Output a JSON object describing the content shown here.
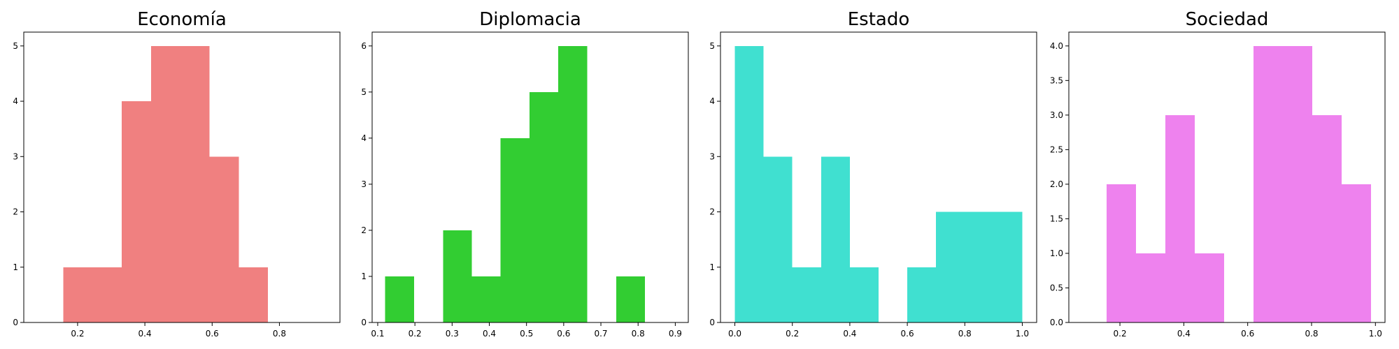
{
  "chart_data": [
    {
      "type": "bar",
      "title": "Economía",
      "color": "#F08080",
      "xlim": [
        0.04,
        0.98
      ],
      "ylim": [
        0,
        5.25
      ],
      "xticks": [
        0.2,
        0.4,
        0.6,
        0.8
      ],
      "xtick_labels": [
        "0.2",
        "0.4",
        "0.6",
        "0.8"
      ],
      "yticks": [
        0,
        1,
        2,
        3,
        4,
        5
      ],
      "ytick_labels": [
        "0",
        "1",
        "2",
        "3",
        "4",
        "5"
      ],
      "bins": [
        {
          "x0": 0.157,
          "x1": 0.244,
          "count": 1
        },
        {
          "x0": 0.244,
          "x1": 0.331,
          "count": 1
        },
        {
          "x0": 0.331,
          "x1": 0.418,
          "count": 4
        },
        {
          "x0": 0.418,
          "x1": 0.505,
          "count": 5
        },
        {
          "x0": 0.505,
          "x1": 0.592,
          "count": 5
        },
        {
          "x0": 0.592,
          "x1": 0.679,
          "count": 3
        },
        {
          "x0": 0.679,
          "x1": 0.766,
          "count": 1
        }
      ]
    },
    {
      "type": "bar",
      "title": "Diplomacia",
      "color": "#32CD32",
      "xlim": [
        0.085,
        0.935
      ],
      "ylim": [
        0,
        6.3
      ],
      "xticks": [
        0.1,
        0.2,
        0.3,
        0.4,
        0.5,
        0.6,
        0.7,
        0.8,
        0.9
      ],
      "xtick_labels": [
        "0.1",
        "0.2",
        "0.3",
        "0.4",
        "0.5",
        "0.6",
        "0.7",
        "0.8",
        "0.9"
      ],
      "yticks": [
        0,
        1,
        2,
        3,
        4,
        5,
        6
      ],
      "ytick_labels": [
        "0",
        "1",
        "2",
        "3",
        "4",
        "5",
        "6"
      ],
      "bins": [
        {
          "x0": 0.12,
          "x1": 0.198,
          "count": 1
        },
        {
          "x0": 0.198,
          "x1": 0.276,
          "count": 0
        },
        {
          "x0": 0.276,
          "x1": 0.353,
          "count": 2
        },
        {
          "x0": 0.353,
          "x1": 0.43,
          "count": 1
        },
        {
          "x0": 0.43,
          "x1": 0.508,
          "count": 4
        },
        {
          "x0": 0.508,
          "x1": 0.585,
          "count": 5
        },
        {
          "x0": 0.585,
          "x1": 0.663,
          "count": 6
        },
        {
          "x0": 0.663,
          "x1": 0.741,
          "count": 0
        },
        {
          "x0": 0.741,
          "x1": 0.818,
          "count": 1
        }
      ]
    },
    {
      "type": "bar",
      "title": "Estado",
      "color": "#40E0D0",
      "xlim": [
        -0.05,
        1.05
      ],
      "ylim": [
        0,
        5.25
      ],
      "xticks": [
        0.0,
        0.2,
        0.4,
        0.6,
        0.8,
        1.0
      ],
      "xtick_labels": [
        "0.0",
        "0.2",
        "0.4",
        "0.6",
        "0.8",
        "1.0"
      ],
      "yticks": [
        0,
        1,
        2,
        3,
        4,
        5
      ],
      "ytick_labels": [
        "0",
        "1",
        "2",
        "3",
        "4",
        "5"
      ],
      "bins": [
        {
          "x0": 0.0,
          "x1": 0.1,
          "count": 5
        },
        {
          "x0": 0.1,
          "x1": 0.2,
          "count": 3
        },
        {
          "x0": 0.2,
          "x1": 0.3,
          "count": 1
        },
        {
          "x0": 0.3,
          "x1": 0.4,
          "count": 3
        },
        {
          "x0": 0.4,
          "x1": 0.5,
          "count": 1
        },
        {
          "x0": 0.5,
          "x1": 0.6,
          "count": 0
        },
        {
          "x0": 0.6,
          "x1": 0.7,
          "count": 1
        },
        {
          "x0": 0.7,
          "x1": 0.8,
          "count": 2
        },
        {
          "x0": 0.8,
          "x1": 0.9,
          "count": 2
        },
        {
          "x0": 0.9,
          "x1": 1.0,
          "count": 2
        }
      ]
    },
    {
      "type": "bar",
      "title": "Sociedad",
      "color": "#EE82EE",
      "xlim": [
        0.04,
        1.03
      ],
      "ylim": [
        0,
        4.2
      ],
      "xticks": [
        0.2,
        0.4,
        0.6,
        0.8,
        1.0
      ],
      "xtick_labels": [
        "0.2",
        "0.4",
        "0.6",
        "0.8",
        "1.0"
      ],
      "yticks": [
        0.0,
        0.5,
        1.0,
        1.5,
        2.0,
        2.5,
        3.0,
        3.5,
        4.0
      ],
      "ytick_labels": [
        "0.0",
        "0.5",
        "1.0",
        "1.5",
        "2.0",
        "2.5",
        "3.0",
        "3.5",
        "4.0"
      ],
      "bins": [
        {
          "x0": 0.158,
          "x1": 0.25,
          "count": 2
        },
        {
          "x0": 0.25,
          "x1": 0.342,
          "count": 1
        },
        {
          "x0": 0.342,
          "x1": 0.434,
          "count": 3
        },
        {
          "x0": 0.434,
          "x1": 0.526,
          "count": 1
        },
        {
          "x0": 0.526,
          "x1": 0.618,
          "count": 0
        },
        {
          "x0": 0.618,
          "x1": 0.71,
          "count": 4
        },
        {
          "x0": 0.71,
          "x1": 0.802,
          "count": 4
        },
        {
          "x0": 0.802,
          "x1": 0.894,
          "count": 3
        },
        {
          "x0": 0.894,
          "x1": 0.986,
          "count": 2
        }
      ]
    }
  ]
}
